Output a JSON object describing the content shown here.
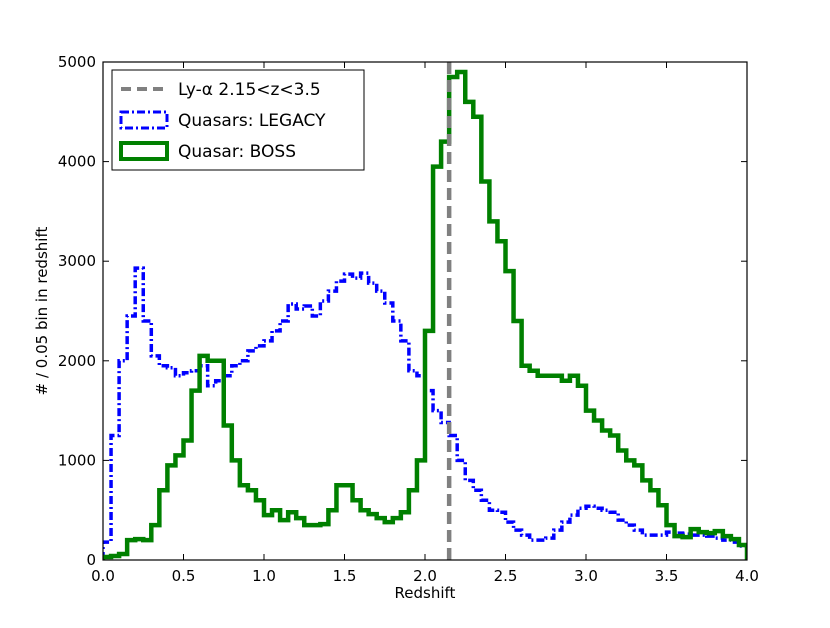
{
  "chart_data": {
    "type": "line",
    "title": "",
    "xlabel": "Redshift",
    "ylabel": "# / 0.05 bin in redshift",
    "xlim": [
      0.0,
      4.0
    ],
    "ylim": [
      0,
      5000
    ],
    "x_ticks": [
      "0.0",
      "0.5",
      "1.0",
      "1.5",
      "2.0",
      "2.5",
      "3.0",
      "3.5",
      "4.0"
    ],
    "y_ticks": [
      "0",
      "1000",
      "2000",
      "3000",
      "4000",
      "5000"
    ],
    "grid": false,
    "legend_position": "top-left",
    "bin_width": 0.05,
    "vline": {
      "name": "Ly-α 2.15<z<3.5",
      "x": 2.15,
      "color": "#808080",
      "style": "dashed"
    },
    "series": [
      {
        "name": "Quasars: LEGACY",
        "color": "#0000ff",
        "style": "dash-dot",
        "x": [
          0.0,
          0.05,
          0.1,
          0.15,
          0.2,
          0.25,
          0.3,
          0.35,
          0.4,
          0.45,
          0.5,
          0.55,
          0.6,
          0.65,
          0.7,
          0.75,
          0.8,
          0.85,
          0.9,
          0.95,
          1.0,
          1.05,
          1.1,
          1.15,
          1.2,
          1.25,
          1.3,
          1.35,
          1.4,
          1.45,
          1.5,
          1.55,
          1.6,
          1.65,
          1.7,
          1.75,
          1.8,
          1.85,
          1.9,
          1.95,
          2.0,
          2.05,
          2.1,
          2.15,
          2.2,
          2.25,
          2.3,
          2.35,
          2.4,
          2.45,
          2.5,
          2.55,
          2.6,
          2.65,
          2.7,
          2.75,
          2.8,
          2.85,
          2.9,
          2.95,
          3.0,
          3.05,
          3.1,
          3.15,
          3.2,
          3.25,
          3.3,
          3.35,
          3.4,
          3.45,
          3.5,
          3.55,
          3.6,
          3.65,
          3.7,
          3.75,
          3.8,
          3.85,
          3.9,
          3.95
        ],
        "values": [
          180,
          1250,
          2000,
          2450,
          2930,
          2400,
          2050,
          1950,
          1930,
          1850,
          1880,
          1900,
          1950,
          1750,
          1800,
          1850,
          1950,
          2000,
          2100,
          2150,
          2200,
          2300,
          2400,
          2570,
          2520,
          2550,
          2450,
          2600,
          2700,
          2800,
          2870,
          2830,
          2880,
          2780,
          2700,
          2580,
          2400,
          2200,
          1900,
          1850,
          1700,
          1500,
          1380,
          1250,
          1000,
          800,
          700,
          600,
          500,
          480,
          380,
          300,
          250,
          200,
          200,
          220,
          300,
          380,
          450,
          520,
          540,
          520,
          500,
          480,
          400,
          350,
          300,
          250,
          250,
          250,
          280,
          270,
          260,
          250,
          250,
          240,
          220,
          200,
          180,
          140
        ]
      },
      {
        "name": "Quasar: BOSS",
        "color": "#008000",
        "style": "solid",
        "x": [
          0.0,
          0.05,
          0.1,
          0.15,
          0.2,
          0.25,
          0.3,
          0.35,
          0.4,
          0.45,
          0.5,
          0.55,
          0.6,
          0.65,
          0.7,
          0.75,
          0.8,
          0.85,
          0.9,
          0.95,
          1.0,
          1.05,
          1.1,
          1.15,
          1.2,
          1.25,
          1.3,
          1.35,
          1.4,
          1.45,
          1.5,
          1.55,
          1.6,
          1.65,
          1.7,
          1.75,
          1.8,
          1.85,
          1.9,
          1.95,
          2.0,
          2.05,
          2.1,
          2.15,
          2.2,
          2.25,
          2.3,
          2.35,
          2.4,
          2.45,
          2.5,
          2.55,
          2.6,
          2.65,
          2.7,
          2.75,
          2.8,
          2.85,
          2.9,
          2.95,
          3.0,
          3.05,
          3.1,
          3.15,
          3.2,
          3.25,
          3.3,
          3.35,
          3.4,
          3.45,
          3.5,
          3.55,
          3.6,
          3.65,
          3.7,
          3.75,
          3.8,
          3.85,
          3.9,
          3.95
        ],
        "values": [
          30,
          40,
          60,
          200,
          210,
          200,
          350,
          700,
          950,
          1050,
          1200,
          1700,
          2050,
          2000,
          2000,
          1350,
          1000,
          750,
          700,
          600,
          450,
          500,
          400,
          480,
          420,
          350,
          350,
          360,
          500,
          750,
          750,
          600,
          500,
          460,
          420,
          380,
          420,
          480,
          700,
          1000,
          2300,
          3950,
          4200,
          4850,
          4900,
          4600,
          4450,
          3800,
          3400,
          3200,
          2900,
          2400,
          1950,
          1900,
          1850,
          1850,
          1850,
          1800,
          1850,
          1750,
          1500,
          1400,
          1300,
          1250,
          1100,
          1000,
          950,
          800,
          700,
          550,
          350,
          240,
          230,
          310,
          280,
          270,
          290,
          240,
          210,
          150
        ]
      }
    ]
  }
}
